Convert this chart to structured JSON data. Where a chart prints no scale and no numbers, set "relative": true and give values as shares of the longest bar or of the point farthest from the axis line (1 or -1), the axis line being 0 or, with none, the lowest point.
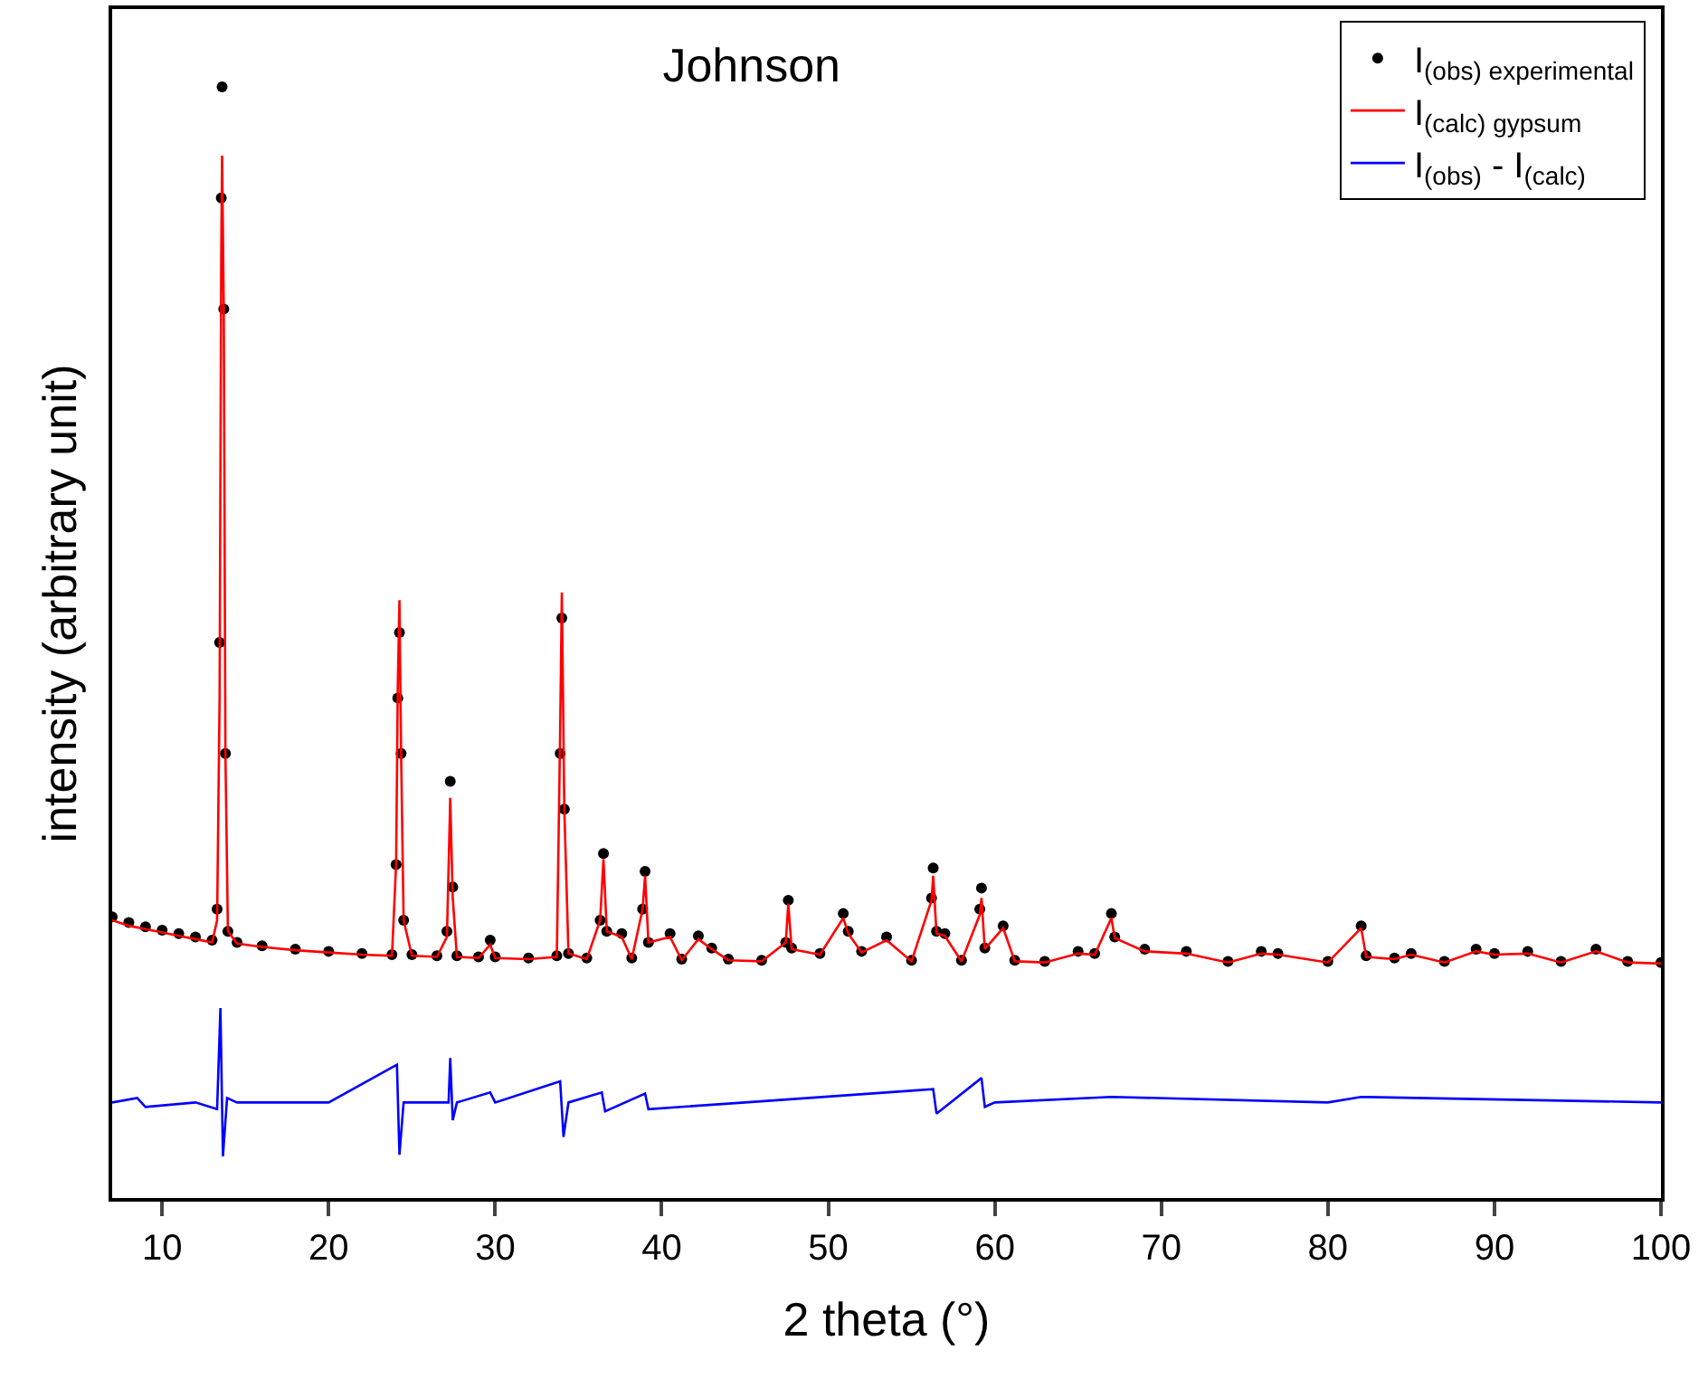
{
  "chart_data": {
    "type": "scatter",
    "title": "Johnson",
    "xlabel": "2 theta (°)",
    "ylabel": "intensity (arbitrary unit)",
    "relative": true,
    "xlim": [
      7,
      100
    ],
    "xticks": [
      10,
      20,
      30,
      40,
      50,
      60,
      70,
      80,
      90,
      100
    ],
    "grid": false,
    "legend": "top right",
    "series": [
      {
        "name": "I$_{(obs) experimental}$",
        "type": "scatter",
        "marker": "circle",
        "color": "#000000",
        "x": [
          7,
          8,
          9,
          10,
          11,
          12,
          13,
          13.3,
          13.45,
          13.55,
          13.6,
          13.7,
          13.8,
          13.95,
          14.5,
          16,
          18,
          20,
          22,
          23.8,
          24.05,
          24.15,
          24.25,
          24.35,
          24.5,
          25,
          26.5,
          27.1,
          27.3,
          27.45,
          27.7,
          29,
          29.7,
          30,
          32,
          33.7,
          33.9,
          34,
          34.15,
          34.4,
          35.5,
          36.3,
          36.5,
          36.7,
          37.6,
          38.2,
          38.85,
          39,
          39.2,
          40.5,
          41.2,
          42.2,
          43,
          44,
          46,
          47.45,
          47.6,
          47.8,
          49.5,
          50.9,
          51.2,
          52,
          53.5,
          55,
          56.2,
          56.3,
          56.5,
          57,
          58,
          59.1,
          59.2,
          59.4,
          60.5,
          61.2,
          63,
          65,
          66,
          67,
          67.2,
          69,
          71.5,
          74,
          76,
          77,
          80,
          82,
          82.3,
          84,
          85,
          87,
          88.9,
          90,
          92,
          94,
          96.1,
          98,
          100
        ],
        "values": [
          0.253,
          0.248,
          0.244,
          0.241,
          0.238,
          0.235,
          0.232,
          0.26,
          0.5,
          0.9,
          1.0,
          0.8,
          0.4,
          0.24,
          0.23,
          0.227,
          0.224,
          0.222,
          0.22,
          0.219,
          0.3,
          0.45,
          0.509,
          0.4,
          0.25,
          0.219,
          0.218,
          0.24,
          0.375,
          0.28,
          0.218,
          0.217,
          0.232,
          0.217,
          0.216,
          0.218,
          0.4,
          0.522,
          0.35,
          0.22,
          0.216,
          0.25,
          0.31,
          0.24,
          0.238,
          0.216,
          0.26,
          0.294,
          0.23,
          0.238,
          0.215,
          0.236,
          0.225,
          0.215,
          0.214,
          0.23,
          0.268,
          0.225,
          0.22,
          0.256,
          0.24,
          0.222,
          0.235,
          0.214,
          0.27,
          0.297,
          0.24,
          0.238,
          0.214,
          0.26,
          0.279,
          0.225,
          0.245,
          0.214,
          0.213,
          0.222,
          0.22,
          0.256,
          0.235,
          0.224,
          0.222,
          0.213,
          0.222,
          0.22,
          0.213,
          0.245,
          0.218,
          0.216,
          0.22,
          0.213,
          0.224,
          0.22,
          0.222,
          0.213,
          0.224,
          0.213,
          0.212
        ]
      },
      {
        "name": "I$_{(calc) gypsum}$",
        "type": "line",
        "marker": "none",
        "color": "#ff0000",
        "x": [
          7,
          8,
          9,
          10,
          11,
          12,
          13,
          13.3,
          13.45,
          13.55,
          13.6,
          13.7,
          13.8,
          13.95,
          14.5,
          16,
          18,
          20,
          22,
          23.8,
          24.05,
          24.15,
          24.25,
          24.35,
          24.5,
          25,
          26.5,
          27.1,
          27.3,
          27.45,
          27.7,
          29,
          29.7,
          30,
          32,
          33.7,
          33.9,
          34,
          34.15,
          34.4,
          35.5,
          36.3,
          36.5,
          36.7,
          37.6,
          38.2,
          38.85,
          39,
          39.2,
          40.5,
          41.2,
          42.2,
          43,
          44,
          46,
          47.45,
          47.6,
          47.8,
          49.5,
          50.9,
          51.2,
          52,
          53.5,
          55,
          56.2,
          56.3,
          56.5,
          57,
          58,
          59.1,
          59.2,
          59.4,
          60.5,
          61.2,
          63,
          65,
          66,
          67,
          67.2,
          69,
          71.5,
          74,
          76,
          77,
          80,
          82,
          82.3,
          84,
          85,
          87,
          88.9,
          90,
          92,
          94,
          96.1,
          98,
          100
        ],
        "values": [
          0.25,
          0.245,
          0.242,
          0.239,
          0.236,
          0.233,
          0.23,
          0.25,
          0.45,
          0.85,
          0.938,
          0.8,
          0.4,
          0.24,
          0.229,
          0.226,
          0.223,
          0.221,
          0.219,
          0.218,
          0.3,
          0.46,
          0.538,
          0.4,
          0.25,
          0.218,
          0.217,
          0.235,
          0.36,
          0.27,
          0.217,
          0.216,
          0.228,
          0.216,
          0.215,
          0.217,
          0.42,
          0.545,
          0.35,
          0.22,
          0.215,
          0.25,
          0.305,
          0.24,
          0.235,
          0.215,
          0.26,
          0.29,
          0.23,
          0.235,
          0.214,
          0.233,
          0.224,
          0.214,
          0.213,
          0.23,
          0.265,
          0.224,
          0.219,
          0.252,
          0.238,
          0.221,
          0.232,
          0.213,
          0.268,
          0.29,
          0.238,
          0.236,
          0.213,
          0.255,
          0.27,
          0.224,
          0.243,
          0.213,
          0.212,
          0.22,
          0.219,
          0.252,
          0.234,
          0.222,
          0.22,
          0.212,
          0.22,
          0.219,
          0.212,
          0.243,
          0.217,
          0.215,
          0.219,
          0.212,
          0.222,
          0.219,
          0.22,
          0.212,
          0.222,
          0.212,
          0.211
        ]
      },
      {
        "name": "I$_{(obs)}$ - I$_{(calc)}$",
        "type": "line",
        "marker": "none",
        "color": "#0000ff",
        "x": [
          7,
          8.5,
          9,
          12,
          13.3,
          13.5,
          13.65,
          13.9,
          14.5,
          20,
          24.1,
          24.25,
          24.5,
          27.2,
          27.3,
          27.45,
          27.7,
          29.7,
          30,
          33.9,
          34.1,
          34.4,
          36.4,
          36.6,
          39,
          39.2,
          45,
          56.3,
          56.5,
          59.2,
          59.4,
          60,
          67,
          80,
          82,
          100
        ],
        "values": [
          0.086,
          0.09,
          0.082,
          0.086,
          0.08,
          0.171,
          0.0375,
          0.09,
          0.086,
          0.086,
          0.12,
          0.039,
          0.086,
          0.086,
          0.126,
          0.07,
          0.086,
          0.095,
          0.086,
          0.105,
          0.055,
          0.086,
          0.095,
          0.078,
          0.094,
          0.08,
          0.086,
          0.098,
          0.076,
          0.108,
          0.082,
          0.086,
          0.091,
          0.086,
          0.091,
          0.086
        ]
      }
    ]
  }
}
